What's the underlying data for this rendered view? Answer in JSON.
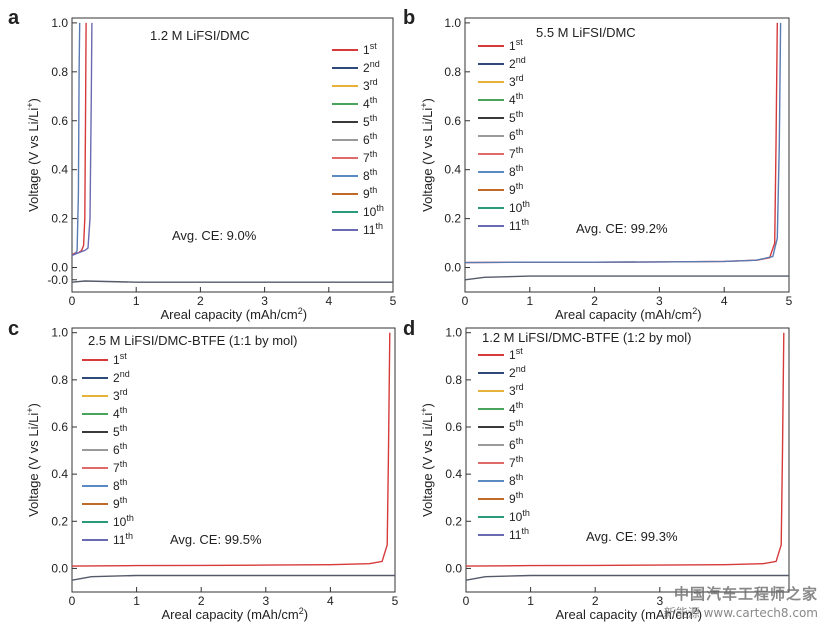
{
  "chart_data": [
    {
      "type": "line",
      "panel_label": "a",
      "title": "1.2 M LiFSI/DMC",
      "xlabel": "Areal capacity (mAh/cm",
      "xlabel_sup": "2",
      "xlabel_close": ")",
      "ylabel": "Voltage (V vs Li/Li",
      "ylabel_sup": "+",
      "ylabel_close": ")",
      "xlim": [
        0,
        5
      ],
      "ylim": [
        -0.1,
        1.02
      ],
      "xticks": [
        "0",
        "1",
        "2",
        "3",
        "4",
        "5"
      ],
      "yticks": [
        "-0.0",
        "0.0",
        "0.2",
        "0.4",
        "0.6",
        "0.8",
        "1.0"
      ],
      "annotation": "Avg. CE: 9.0%",
      "legend_position": "right",
      "legend": [
        {
          "base": "1",
          "sup": "st"
        },
        {
          "base": "2",
          "sup": "nd"
        },
        {
          "base": "3",
          "sup": "rd"
        },
        {
          "base": "4",
          "sup": "th"
        },
        {
          "base": "5",
          "sup": "th"
        },
        {
          "base": "6",
          "sup": "th"
        },
        {
          "base": "7",
          "sup": "th"
        },
        {
          "base": "8",
          "sup": "th"
        },
        {
          "base": "9",
          "sup": "th"
        },
        {
          "base": "10",
          "sup": "th"
        },
        {
          "base": "11",
          "sup": "th"
        }
      ],
      "series": [
        {
          "name": "1st charge",
          "x": [
            0,
            0.02,
            0.05,
            0.1,
            0.15,
            0.18,
            0.2,
            0.21,
            0.22
          ],
          "y": [
            0.05,
            0.055,
            0.06,
            0.06,
            0.07,
            0.09,
            0.2,
            0.6,
            1.0
          ]
        },
        {
          "name": "cycles 2-11 charge",
          "x": [
            0,
            0.05,
            0.08,
            0.1,
            0.11,
            0.12
          ],
          "y": [
            0.05,
            0.055,
            0.07,
            0.3,
            0.8,
            1.0
          ]
        },
        {
          "name": "charge (late cycle)",
          "x": [
            0,
            0.1,
            0.2,
            0.25,
            0.28,
            0.3,
            0.31
          ],
          "y": [
            0.05,
            0.06,
            0.07,
            0.08,
            0.2,
            0.7,
            1.0
          ]
        },
        {
          "name": "deposition",
          "x": [
            0,
            0.2,
            1,
            2,
            3,
            4,
            5
          ],
          "y": [
            -0.06,
            -0.055,
            -0.06,
            -0.06,
            -0.06,
            -0.06,
            -0.06
          ]
        }
      ]
    },
    {
      "type": "line",
      "panel_label": "b",
      "title": "5.5 M LiFSI/DMC",
      "xlabel": "Areal capacity (mAh/cm",
      "xlabel_sup": "2",
      "xlabel_close": ")",
      "ylabel": "Voltage (V vs Li/Li",
      "ylabel_sup": "+",
      "ylabel_close": ")",
      "xlim": [
        0,
        5
      ],
      "ylim": [
        -0.1,
        1.02
      ],
      "xticks": [
        "0",
        "1",
        "2",
        "3",
        "4",
        "5"
      ],
      "yticks": [
        "0.0",
        "0.2",
        "0.4",
        "0.6",
        "0.8",
        "1.0"
      ],
      "annotation": "Avg. CE: 99.2%",
      "legend_position": "left",
      "legend": [
        {
          "base": "1",
          "sup": "st"
        },
        {
          "base": "2",
          "sup": "nd"
        },
        {
          "base": "3",
          "sup": "rd"
        },
        {
          "base": "4",
          "sup": "th"
        },
        {
          "base": "5",
          "sup": "th"
        },
        {
          "base": "6",
          "sup": "th"
        },
        {
          "base": "7",
          "sup": "th"
        },
        {
          "base": "8",
          "sup": "th"
        },
        {
          "base": "9",
          "sup": "th"
        },
        {
          "base": "10",
          "sup": "th"
        },
        {
          "base": "11",
          "sup": "th"
        }
      ],
      "series": [
        {
          "name": "charge",
          "x": [
            0,
            1,
            2,
            3,
            4,
            4.5,
            4.7,
            4.78,
            4.8,
            4.82
          ],
          "y": [
            0.02,
            0.022,
            0.022,
            0.023,
            0.025,
            0.03,
            0.04,
            0.1,
            0.5,
            1.0
          ]
        },
        {
          "name": "charge (late cycle)",
          "x": [
            0,
            1,
            2,
            3,
            4,
            4.5,
            4.75,
            4.82,
            4.85,
            4.87
          ],
          "y": [
            0.02,
            0.022,
            0.022,
            0.023,
            0.025,
            0.03,
            0.045,
            0.12,
            0.5,
            1.0
          ]
        },
        {
          "name": "deposition",
          "x": [
            0,
            0.3,
            1,
            2,
            3,
            4,
            5
          ],
          "y": [
            -0.05,
            -0.04,
            -0.035,
            -0.035,
            -0.035,
            -0.035,
            -0.035
          ]
        }
      ]
    },
    {
      "type": "line",
      "panel_label": "c",
      "title": "2.5 M LiFSI/DMC-BTFE (1:1 by mol)",
      "xlabel": "Areal capacity (mAh/cm",
      "xlabel_sup": "2",
      "xlabel_close": ")",
      "ylabel": "Voltage (V vs Li/Li",
      "ylabel_sup": "+",
      "ylabel_close": ")",
      "xlim": [
        0,
        5
      ],
      "ylim": [
        -0.1,
        1.02
      ],
      "xticks": [
        "0",
        "1",
        "2",
        "3",
        "4",
        "5"
      ],
      "yticks": [
        "0.0",
        "0.2",
        "0.4",
        "0.6",
        "0.8",
        "1.0"
      ],
      "annotation": "Avg. CE: 99.5%",
      "legend_position": "left",
      "legend": [
        {
          "base": "1",
          "sup": "st"
        },
        {
          "base": "2",
          "sup": "nd"
        },
        {
          "base": "3",
          "sup": "rd"
        },
        {
          "base": "4",
          "sup": "th"
        },
        {
          "base": "5",
          "sup": "th"
        },
        {
          "base": "6",
          "sup": "th"
        },
        {
          "base": "7",
          "sup": "th"
        },
        {
          "base": "8",
          "sup": "th"
        },
        {
          "base": "9",
          "sup": "th"
        },
        {
          "base": "10",
          "sup": "th"
        },
        {
          "base": "11",
          "sup": "th"
        }
      ],
      "series": [
        {
          "name": "charge",
          "x": [
            0,
            1,
            2,
            3,
            4,
            4.6,
            4.8,
            4.88,
            4.9,
            4.92
          ],
          "y": [
            0.01,
            0.012,
            0.013,
            0.014,
            0.016,
            0.02,
            0.03,
            0.1,
            0.5,
            1.0
          ]
        },
        {
          "name": "deposition",
          "x": [
            0,
            0.3,
            1,
            2,
            3,
            4,
            5
          ],
          "y": [
            -0.05,
            -0.035,
            -0.03,
            -0.03,
            -0.03,
            -0.03,
            -0.03
          ]
        }
      ]
    },
    {
      "type": "line",
      "panel_label": "d",
      "title": "1.2 M LiFSI/DMC-BTFE (1:2 by mol)",
      "xlabel": "Areal capacity (mAh/cm",
      "xlabel_sup": "2",
      "xlabel_close": ")",
      "ylabel": "Voltage (V vs Li/Li",
      "ylabel_sup": "+",
      "ylabel_close": ")",
      "xlim": [
        0,
        5
      ],
      "ylim": [
        -0.1,
        1.02
      ],
      "xticks": [
        "0",
        "1",
        "2",
        "3"
      ],
      "yticks": [
        "0.0",
        "0.2",
        "0.4",
        "0.6",
        "0.8",
        "1.0"
      ],
      "annotation": "Avg. CE: 99.3%",
      "legend_position": "left",
      "legend": [
        {
          "base": "1",
          "sup": "st"
        },
        {
          "base": "2",
          "sup": "nd"
        },
        {
          "base": "3",
          "sup": "rd"
        },
        {
          "base": "4",
          "sup": "th"
        },
        {
          "base": "5",
          "sup": "th"
        },
        {
          "base": "6",
          "sup": "th"
        },
        {
          "base": "7",
          "sup": "th"
        },
        {
          "base": "8",
          "sup": "th"
        },
        {
          "base": "9",
          "sup": "th"
        },
        {
          "base": "10",
          "sup": "th"
        },
        {
          "base": "11",
          "sup": "th"
        }
      ],
      "series": [
        {
          "name": "charge",
          "x": [
            0,
            1,
            2,
            3,
            4,
            4.6,
            4.8,
            4.88,
            4.9,
            4.92
          ],
          "y": [
            0.01,
            0.012,
            0.013,
            0.014,
            0.016,
            0.02,
            0.03,
            0.1,
            0.5,
            1.0
          ]
        },
        {
          "name": "deposition",
          "x": [
            0,
            0.3,
            1,
            2,
            3,
            4,
            5
          ],
          "y": [
            -0.05,
            -0.035,
            -0.03,
            -0.03,
            -0.03,
            -0.03,
            -0.03
          ]
        }
      ]
    }
  ],
  "cycle_colors": [
    "#d63a3a",
    "#2f4a78",
    "#e7b23a",
    "#4aa35a",
    "#3a3a3a",
    "#9a9a9a",
    "#e06a6a",
    "#5a8ac2",
    "#c06a2a",
    "#2a9a7a",
    "#6a6ab2"
  ],
  "watermark": {
    "line1": "中国汽车工程师之家",
    "line2": "新能源 www.cartech8.com"
  }
}
